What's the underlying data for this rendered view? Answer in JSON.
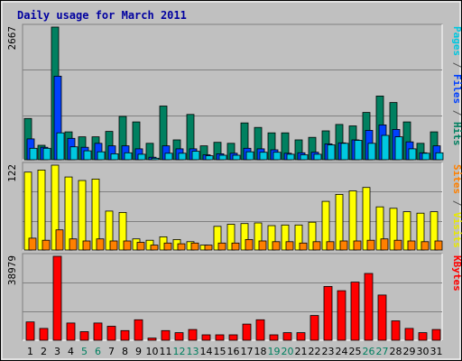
{
  "chart_data": {
    "type": "bar",
    "title": "Daily usage for March 2011",
    "categories": [
      "1",
      "2",
      "3",
      "4",
      "5",
      "6",
      "7",
      "8",
      "9",
      "10",
      "11",
      "12",
      "13",
      "14",
      "15",
      "16",
      "17",
      "18",
      "19",
      "20",
      "21",
      "22",
      "23",
      "24",
      "25",
      "26",
      "27",
      "28",
      "29",
      "30",
      "31"
    ],
    "weekend_days": [
      5,
      6,
      12,
      13,
      19,
      20,
      26,
      27
    ],
    "panels": [
      {
        "id": "hits",
        "max_label": "2667",
        "ymax": 2667,
        "right_labels": [
          {
            "text": "Pages",
            "color": "#00c8e0"
          },
          {
            "text": " / ",
            "color": "#555555"
          },
          {
            "text": "Files",
            "color": "#0040ff"
          },
          {
            "text": " / ",
            "color": "#555555"
          },
          {
            "text": "Hits",
            "color": "#008060"
          }
        ],
        "series": [
          {
            "name": "Hits",
            "color": "#008060",
            "values": [
              830,
              290,
              2667,
              560,
              460,
              460,
              570,
              870,
              760,
              330,
              1080,
              400,
              910,
              280,
              350,
              330,
              740,
              650,
              540,
              540,
              400,
              450,
              580,
              710,
              680,
              950,
              1280,
              1150,
              760,
              330,
              560
            ]
          },
          {
            "name": "Files",
            "color": "#0040ff",
            "values": [
              420,
              250,
              1680,
              430,
              250,
              330,
              280,
              280,
              220,
              50,
              280,
              220,
              220,
              100,
              120,
              130,
              230,
              220,
              200,
              130,
              140,
              150,
              320,
              340,
              400,
              590,
              700,
              610,
              360,
              140,
              280
            ]
          },
          {
            "name": "Pages",
            "color": "#00c8e0",
            "values": [
              230,
              230,
              540,
              260,
              180,
              160,
              120,
              140,
              110,
              30,
              130,
              130,
              170,
              80,
              90,
              90,
              160,
              150,
              150,
              110,
              100,
              110,
              300,
              330,
              390,
              330,
              490,
              460,
              220,
              130,
              140
            ]
          }
        ]
      },
      {
        "id": "visits",
        "max_label": "122",
        "ymax": 122,
        "right_labels": [
          {
            "text": "Sites",
            "color": "#ff8000"
          },
          {
            "text": " / ",
            "color": "#555555"
          },
          {
            "text": "Visits",
            "color": "#e8e800"
          }
        ],
        "series": [
          {
            "name": "Visits",
            "color": "#ffff00",
            "values": [
              112,
              115,
              122,
              105,
              100,
              102,
              56,
              54,
              16,
              14,
              19,
              15,
              12,
              7,
              34,
              37,
              38,
              39,
              35,
              36,
              36,
              40,
              70,
              80,
              85,
              90,
              62,
              60,
              55,
              53,
              55
            ]
          },
          {
            "name": "Sites",
            "color": "#ff8000",
            "values": [
              17,
              14,
              29,
              16,
              13,
              16,
              13,
              13,
              11,
              7,
              10,
              9,
              10,
              7,
              10,
              10,
              15,
              13,
              12,
              12,
              10,
              12,
              12,
              13,
              13,
              14,
              16,
              14,
              13,
              12,
              13
            ]
          }
        ]
      },
      {
        "id": "kbytes",
        "max_label": "38979",
        "ymax": 38979,
        "right_labels": [
          {
            "text": "KBytes",
            "color": "#ff0000"
          }
        ],
        "series": [
          {
            "name": "KBytes",
            "color": "#ff0000",
            "values": [
              8500,
              5500,
              38979,
              8000,
              4000,
              8000,
              6500,
              4500,
              9500,
              1000,
              4500,
              3500,
              5000,
              2500,
              2500,
              2500,
              7500,
              9500,
              2500,
              3500,
              3500,
              11500,
              25000,
              23000,
              27000,
              31000,
              21000,
              9000,
              5500,
              3500,
              5000
            ]
          }
        ]
      }
    ]
  }
}
